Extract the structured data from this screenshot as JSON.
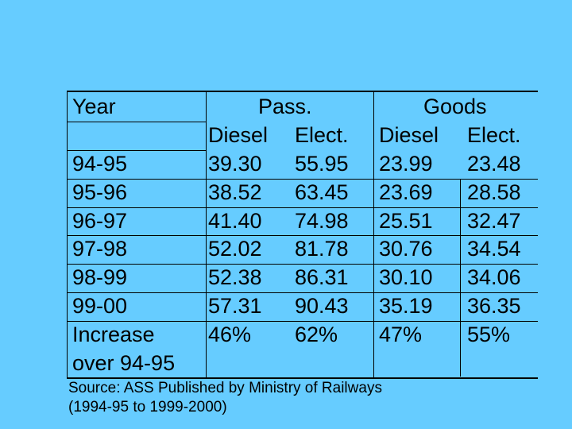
{
  "table": {
    "header": {
      "year_label": "Year",
      "pass_label": "Pass.",
      "goods_label": "Goods",
      "sub_labels": [
        "Diesel",
        "Elect.",
        "Diesel",
        "Elect."
      ]
    },
    "rows": [
      {
        "year": "94-95",
        "values": [
          "39.30",
          "55.95",
          "23.99",
          "23.48"
        ]
      },
      {
        "year": "95-96",
        "values": [
          "38.52",
          "63.45",
          "23.69",
          "28.58"
        ]
      },
      {
        "year": "96-97",
        "values": [
          "41.40",
          "74.98",
          "25.51",
          "32.47"
        ]
      },
      {
        "year": "97-98",
        "values": [
          "52.02",
          "81.78",
          "30.76",
          "34.54"
        ]
      },
      {
        "year": "98-99",
        "values": [
          "52.38",
          "86.31",
          "30.10",
          "34.06"
        ]
      },
      {
        "year": "99-00",
        "values": [
          "57.31",
          "90.43",
          "35.19",
          "36.35"
        ]
      }
    ],
    "increase": {
      "label_line1": "Increase",
      "label_line2": "over 94-95",
      "values": [
        "46%",
        "62%",
        "47%",
        "55%"
      ]
    }
  },
  "source": {
    "line1": "Source: ASS Published by Ministry of Railways",
    "line2": "(1994-95 to 1999-2000)"
  }
}
